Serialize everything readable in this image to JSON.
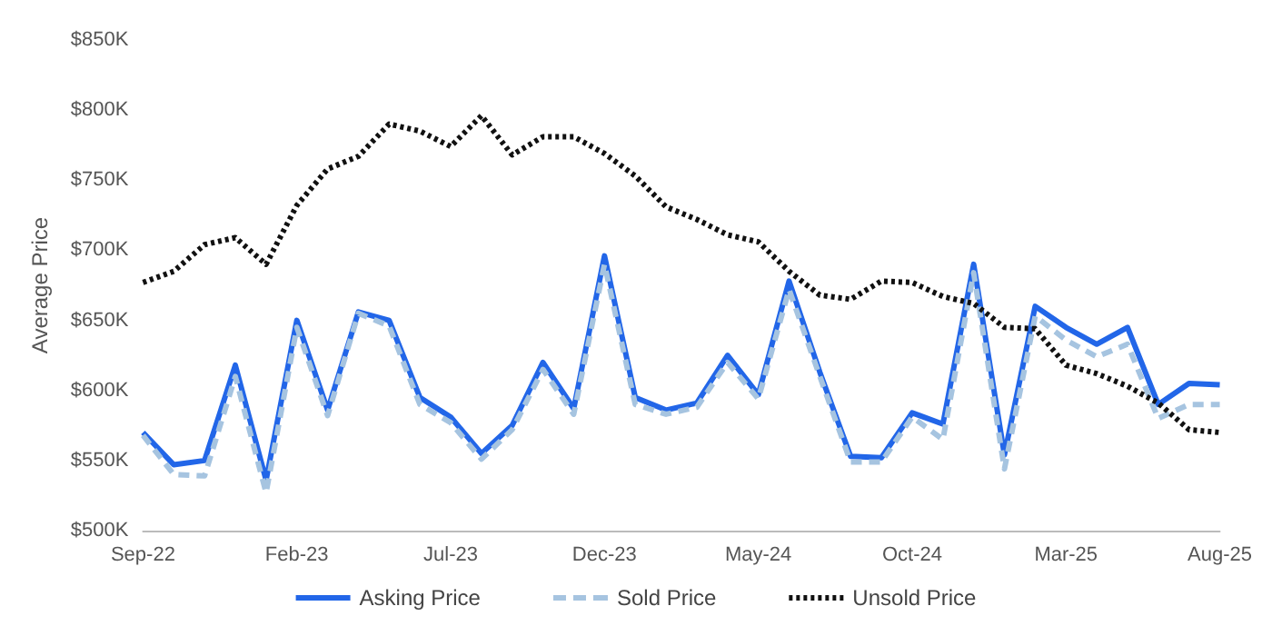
{
  "chart_data": {
    "type": "line",
    "ylabel": "Average Price",
    "categories": [
      "Sep-22",
      null,
      null,
      null,
      null,
      "Feb-23",
      null,
      null,
      null,
      null,
      "Jul-23",
      null,
      null,
      null,
      null,
      "Dec-23",
      null,
      null,
      null,
      null,
      "May-24",
      null,
      null,
      null,
      null,
      "Oct-24",
      null,
      null,
      null,
      null,
      "Mar-25",
      null,
      null,
      null,
      null,
      "Aug-25"
    ],
    "series": [
      {
        "name": "Asking Price",
        "color": "#2266e8",
        "line_style": "solid",
        "values": [
          570,
          547,
          550,
          618,
          536,
          650,
          586,
          656,
          650,
          595,
          581,
          555,
          575,
          620,
          587,
          696,
          595,
          586,
          591,
          625,
          597,
          678,
          613,
          553,
          552,
          584,
          576,
          690,
          554,
          660,
          645,
          633,
          645,
          590,
          605,
          604
        ]
      },
      {
        "name": "Sold Price",
        "color": "#a6c4e0",
        "line_style": "dashed",
        "values": [
          568,
          540,
          539,
          610,
          527,
          645,
          582,
          655,
          646,
          590,
          577,
          551,
          572,
          615,
          583,
          690,
          590,
          583,
          588,
          620,
          594,
          672,
          610,
          549,
          549,
          581,
          565,
          684,
          544,
          653,
          636,
          624,
          633,
          580,
          590,
          590
        ]
      },
      {
        "name": "Unsold Price",
        "color": "#111111",
        "line_style": "dotted",
        "values": [
          677,
          685,
          704,
          709,
          690,
          732,
          758,
          767,
          790,
          785,
          774,
          796,
          768,
          781,
          781,
          769,
          753,
          731,
          722,
          711,
          706,
          685,
          668,
          665,
          678,
          677,
          667,
          662,
          645,
          644,
          618,
          612,
          603,
          591,
          572,
          570
        ]
      }
    ],
    "ylim": [
      500,
      850
    ],
    "yticks": [
      {
        "value": 500,
        "label": "$500K"
      },
      {
        "value": 550,
        "label": "$550K"
      },
      {
        "value": 600,
        "label": "$600K"
      },
      {
        "value": 650,
        "label": "$650K"
      },
      {
        "value": 700,
        "label": "$700K"
      },
      {
        "value": 750,
        "label": "$750K"
      },
      {
        "value": 800,
        "label": "$800K"
      },
      {
        "value": 850,
        "label": "$850K"
      }
    ],
    "grid": false,
    "legend": "bottom",
    "marker": "none"
  }
}
